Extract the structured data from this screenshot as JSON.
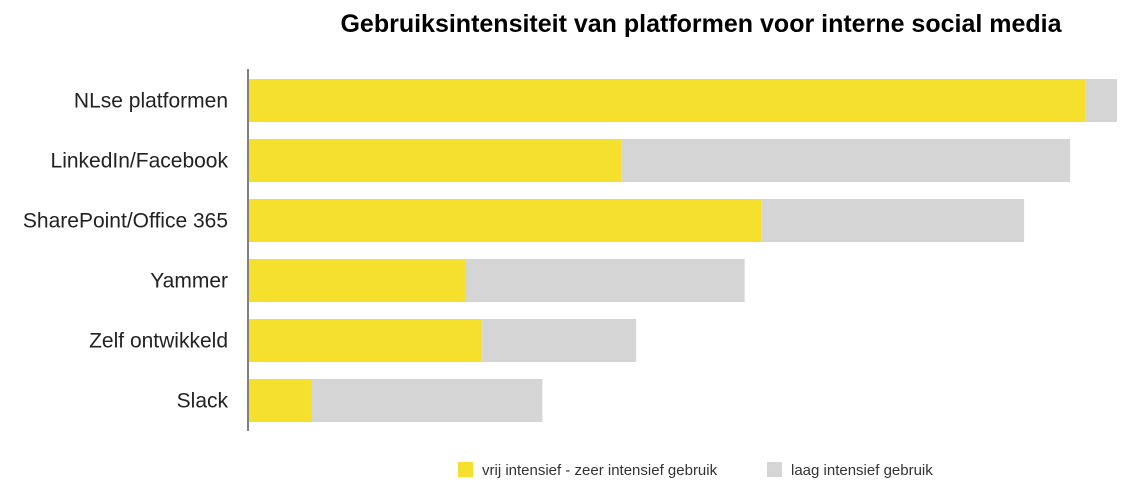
{
  "chart_data": {
    "type": "bar",
    "orientation": "horizontal",
    "stacked": true,
    "title": "Gebruiksintensiteit van platformen voor interne social media",
    "xlabel": "",
    "ylabel": "",
    "xlim": [
      0,
      100
    ],
    "grid": false,
    "legend_position": "bottom",
    "categories": [
      "NLse platformen",
      "LinkedIn/Facebook",
      "SharePoint/Office 365",
      "Yammer",
      "Zelf ontwikkeld",
      "Slack"
    ],
    "series": [
      {
        "name": "vrij intensief - zeer intensief gebruik",
        "color": "#F5E02E",
        "values": [
          96.4,
          42.9,
          59.0,
          25.0,
          26.8,
          7.2
        ]
      },
      {
        "name": "laag intensief gebruik",
        "color": "#D5D5D5",
        "values": [
          3.6,
          51.7,
          30.3,
          32.1,
          17.8,
          26.6
        ]
      }
    ]
  }
}
